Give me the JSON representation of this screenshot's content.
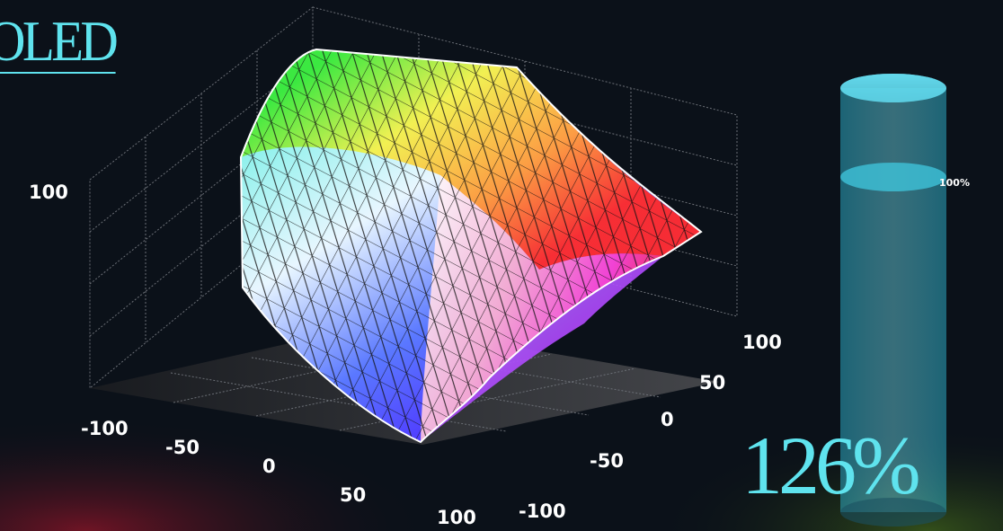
{
  "header": {
    "title": "OLED"
  },
  "gauge": {
    "level_label": "100%",
    "coverage_label": "126%",
    "coverage_value": 126,
    "reference_value": 100
  },
  "colors": {
    "accent": "#5fe3ee",
    "background": "#0b1119"
  },
  "chart_data": {
    "type": "3d-surface",
    "title": "",
    "vertical_axis": {
      "ticks": [
        "100"
      ]
    },
    "left_axis": {
      "ticks": [
        "-100",
        "-50",
        "0",
        "50",
        "100"
      ],
      "range": [
        -100,
        100
      ]
    },
    "right_axis": {
      "ticks": [
        "100",
        "50",
        "0",
        "-50",
        "-100"
      ],
      "range": [
        -100,
        100
      ]
    },
    "grid": true
  }
}
